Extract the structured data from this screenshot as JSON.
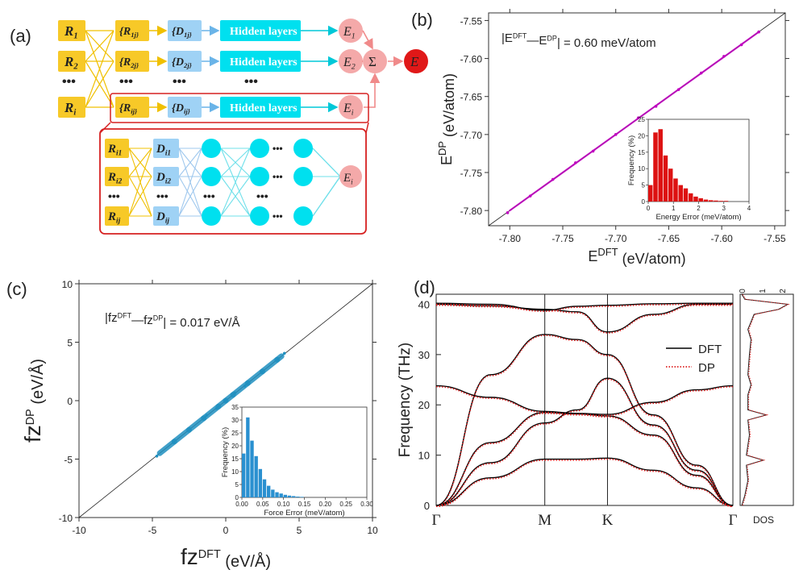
{
  "panel_a": {
    "label": "(a)",
    "rows": [
      {
        "r": "R",
        "rs": "1",
        "rij": "{R",
        "rijs": "1j}",
        "d": "{D",
        "ds": "1j}",
        "h": "Hidden layers",
        "e": "E",
        "es": "1"
      },
      {
        "r": "R",
        "rs": "2",
        "rij": "{R",
        "rijs": "2j}",
        "d": "{D",
        "ds": "2j}",
        "h": "Hidden layers",
        "e": "E",
        "es": "2"
      },
      {
        "r": "R",
        "rs": "i",
        "rij": "{R",
        "rijs": "ij}",
        "d": "{D",
        "ds": "ij}",
        "h": "Hidden layers",
        "e": "E",
        "es": "i"
      }
    ],
    "dots": "•••",
    "sum": "Σ",
    "total": "E",
    "inset_r": [
      {
        "t": "R",
        "s": "i1"
      },
      {
        "t": "R",
        "s": "i2"
      },
      {
        "t": "R",
        "s": "ij"
      }
    ],
    "inset_d": [
      {
        "t": "D",
        "s": "i1"
      },
      {
        "t": "D",
        "s": "i2"
      },
      {
        "t": "D",
        "s": "ij"
      }
    ],
    "inset_e": {
      "t": "E",
      "s": "i"
    }
  },
  "chart_data": [
    {
      "id": "b",
      "type": "scatter",
      "panel_label": "(b)",
      "annotation": "|E^DFT—E^DP| = 0.60 meV/atom",
      "xlabel": "E^DFT (eV/atom)",
      "ylabel": "E^DP (eV/atom)",
      "xlim": [
        -7.82,
        -7.54
      ],
      "ylim": [
        -7.82,
        -7.54
      ],
      "xticks": [
        -7.8,
        -7.75,
        -7.7,
        -7.65,
        -7.6,
        -7.55
      ],
      "yticks": [
        -7.8,
        -7.75,
        -7.7,
        -7.65,
        -7.6,
        -7.55
      ],
      "xtick_labels": [
        "-7.80",
        "-7.75",
        "-7.70",
        "-7.65",
        "-7.60",
        "-7.55"
      ],
      "ytick_labels": [
        "-7.80",
        "-7.75",
        "-7.70",
        "-7.65",
        "-7.60",
        "-7.55"
      ],
      "diagonal": true,
      "point_color": "#c000c0",
      "series": [
        {
          "x": [
            -7.8,
            -7.78,
            -7.76,
            -7.74,
            -7.72,
            -7.7,
            -7.68,
            -7.66,
            -7.64,
            -7.62,
            -7.6,
            -7.58,
            -7.565
          ],
          "y": [
            -7.8,
            -7.78,
            -7.76,
            -7.74,
            -7.72,
            -7.7,
            -7.68,
            -7.66,
            -7.64,
            -7.62,
            -7.6,
            -7.58,
            -7.565
          ]
        }
      ],
      "inset": {
        "type": "bar",
        "xlabel": "Energy Error (meV/atom)",
        "ylabel": "Frequency (%)",
        "xlim": [
          0,
          4
        ],
        "ylim": [
          0,
          25
        ],
        "xticks": [
          0,
          1,
          2,
          3,
          4
        ],
        "yticks": [
          0,
          5,
          10,
          15,
          20,
          25
        ],
        "bin_width": 0.2,
        "values": [
          5,
          21,
          22,
          14,
          10,
          7,
          5,
          4,
          2.5,
          1.5,
          1,
          0.6,
          0.4,
          0.3,
          0.2,
          0.2
        ],
        "color": "#dd1111"
      }
    },
    {
      "id": "c",
      "type": "scatter",
      "panel_label": "(c)",
      "annotation": "|fz^DFT—fz^DP| = 0.017 eV/Å",
      "xlabel": "fz^DFT (eV/Å)",
      "ylabel": "fz^DP (eV/Å)",
      "xlim": [
        -10,
        10
      ],
      "ylim": [
        -10,
        10
      ],
      "xticks": [
        -10,
        -5,
        0,
        5,
        10
      ],
      "yticks": [
        -10,
        -5,
        0,
        5,
        10
      ],
      "xtick_labels": [
        "-10",
        "-5",
        "0",
        "5",
        "10"
      ],
      "ytick_labels": [
        "-10",
        "-5",
        "0",
        "5",
        "10"
      ],
      "diagonal": true,
      "point_color": "#2090c0",
      "series": [
        {
          "x": [
            -4.5,
            -3.5,
            -2.5,
            -1.5,
            -0.5,
            0,
            0.5,
            1.5,
            2.5,
            3.5,
            3.8
          ],
          "y": [
            -4.5,
            -3.5,
            -2.5,
            -1.5,
            -0.5,
            0,
            0.5,
            1.5,
            2.5,
            3.5,
            3.8
          ]
        }
      ],
      "inset": {
        "type": "bar",
        "xlabel": "Force Error (meV/atom)",
        "ylabel": "Frequency (%)",
        "xlim": [
          0,
          0.3
        ],
        "ylim": [
          0,
          35
        ],
        "xticks": [
          0,
          0.05,
          0.1,
          0.15,
          0.2,
          0.25,
          0.3
        ],
        "xtick_labels": [
          "0.00",
          "0.05",
          "0.10",
          "0.15",
          "0.20",
          "0.25",
          "0.30"
        ],
        "yticks": [
          0,
          5,
          10,
          15,
          20,
          25,
          30,
          35
        ],
        "bin_width": 0.01,
        "values": [
          17,
          31,
          22,
          16,
          11,
          7,
          4.5,
          3,
          2,
          1.5,
          1,
          0.7,
          0.5,
          0.3,
          0.2
        ],
        "color": "#2a90d0"
      }
    },
    {
      "id": "d",
      "type": "line",
      "panel_label": "(d)",
      "ylabel": "Frequency (THz)",
      "ylim": [
        0,
        42
      ],
      "yticks": [
        0,
        10,
        20,
        30,
        40
      ],
      "kpoints": [
        "Γ",
        "M",
        "K",
        "Γ"
      ],
      "kpos": [
        0,
        0.5,
        0.7887,
        1.366
      ],
      "legend": [
        {
          "name": "DFT",
          "color": "#000000",
          "style": "solid"
        },
        {
          "name": "DP",
          "color": "#dd2222",
          "style": "dotted"
        }
      ],
      "legend_position": "right",
      "dos_label": "DOS",
      "dos_xticks": [
        "0",
        "1",
        "2"
      ],
      "bands": [
        {
          "k": [
            0,
            0.25,
            0.5,
            0.65,
            0.7887,
            1.0,
            1.2,
            1.366
          ],
          "f": [
            0,
            5.5,
            9.2,
            9.2,
            9.4,
            7.0,
            3.5,
            0
          ]
        },
        {
          "k": [
            0,
            0.25,
            0.5,
            0.65,
            0.7887,
            1.0,
            1.2,
            1.366
          ],
          "f": [
            0,
            8.5,
            16.4,
            19,
            25.3,
            16,
            7,
            0
          ]
        },
        {
          "k": [
            0,
            0.25,
            0.5,
            0.65,
            0.7887,
            1.0,
            1.2,
            1.366
          ],
          "f": [
            0,
            12.5,
            18.5,
            18.2,
            17.8,
            14,
            6,
            0
          ]
        },
        {
          "k": [
            0,
            0.25,
            0.5,
            0.65,
            0.7887,
            1.0,
            1.2,
            1.366
          ],
          "f": [
            23.8,
            21.5,
            18.7,
            18.3,
            18.1,
            20.5,
            23,
            23.8
          ]
        },
        {
          "k": [
            0,
            0.25,
            0.5,
            0.65,
            0.7887,
            1.0,
            1.2,
            1.366
          ],
          "f": [
            0,
            26,
            34,
            33,
            30,
            18,
            8,
            0
          ]
        },
        {
          "k": [
            0,
            0.25,
            0.5,
            0.65,
            0.7887,
            1.0,
            1.2,
            1.366
          ],
          "f": [
            40,
            39.7,
            39,
            38.5,
            34.5,
            38,
            40,
            40
          ]
        },
        {
          "k": [
            0,
            0.25,
            0.5,
            0.65,
            0.7887,
            1.0,
            1.2,
            1.366
          ],
          "f": [
            40.2,
            40,
            38.8,
            39.6,
            39.8,
            40.1,
            40.2,
            40.2
          ]
        }
      ]
    }
  ]
}
